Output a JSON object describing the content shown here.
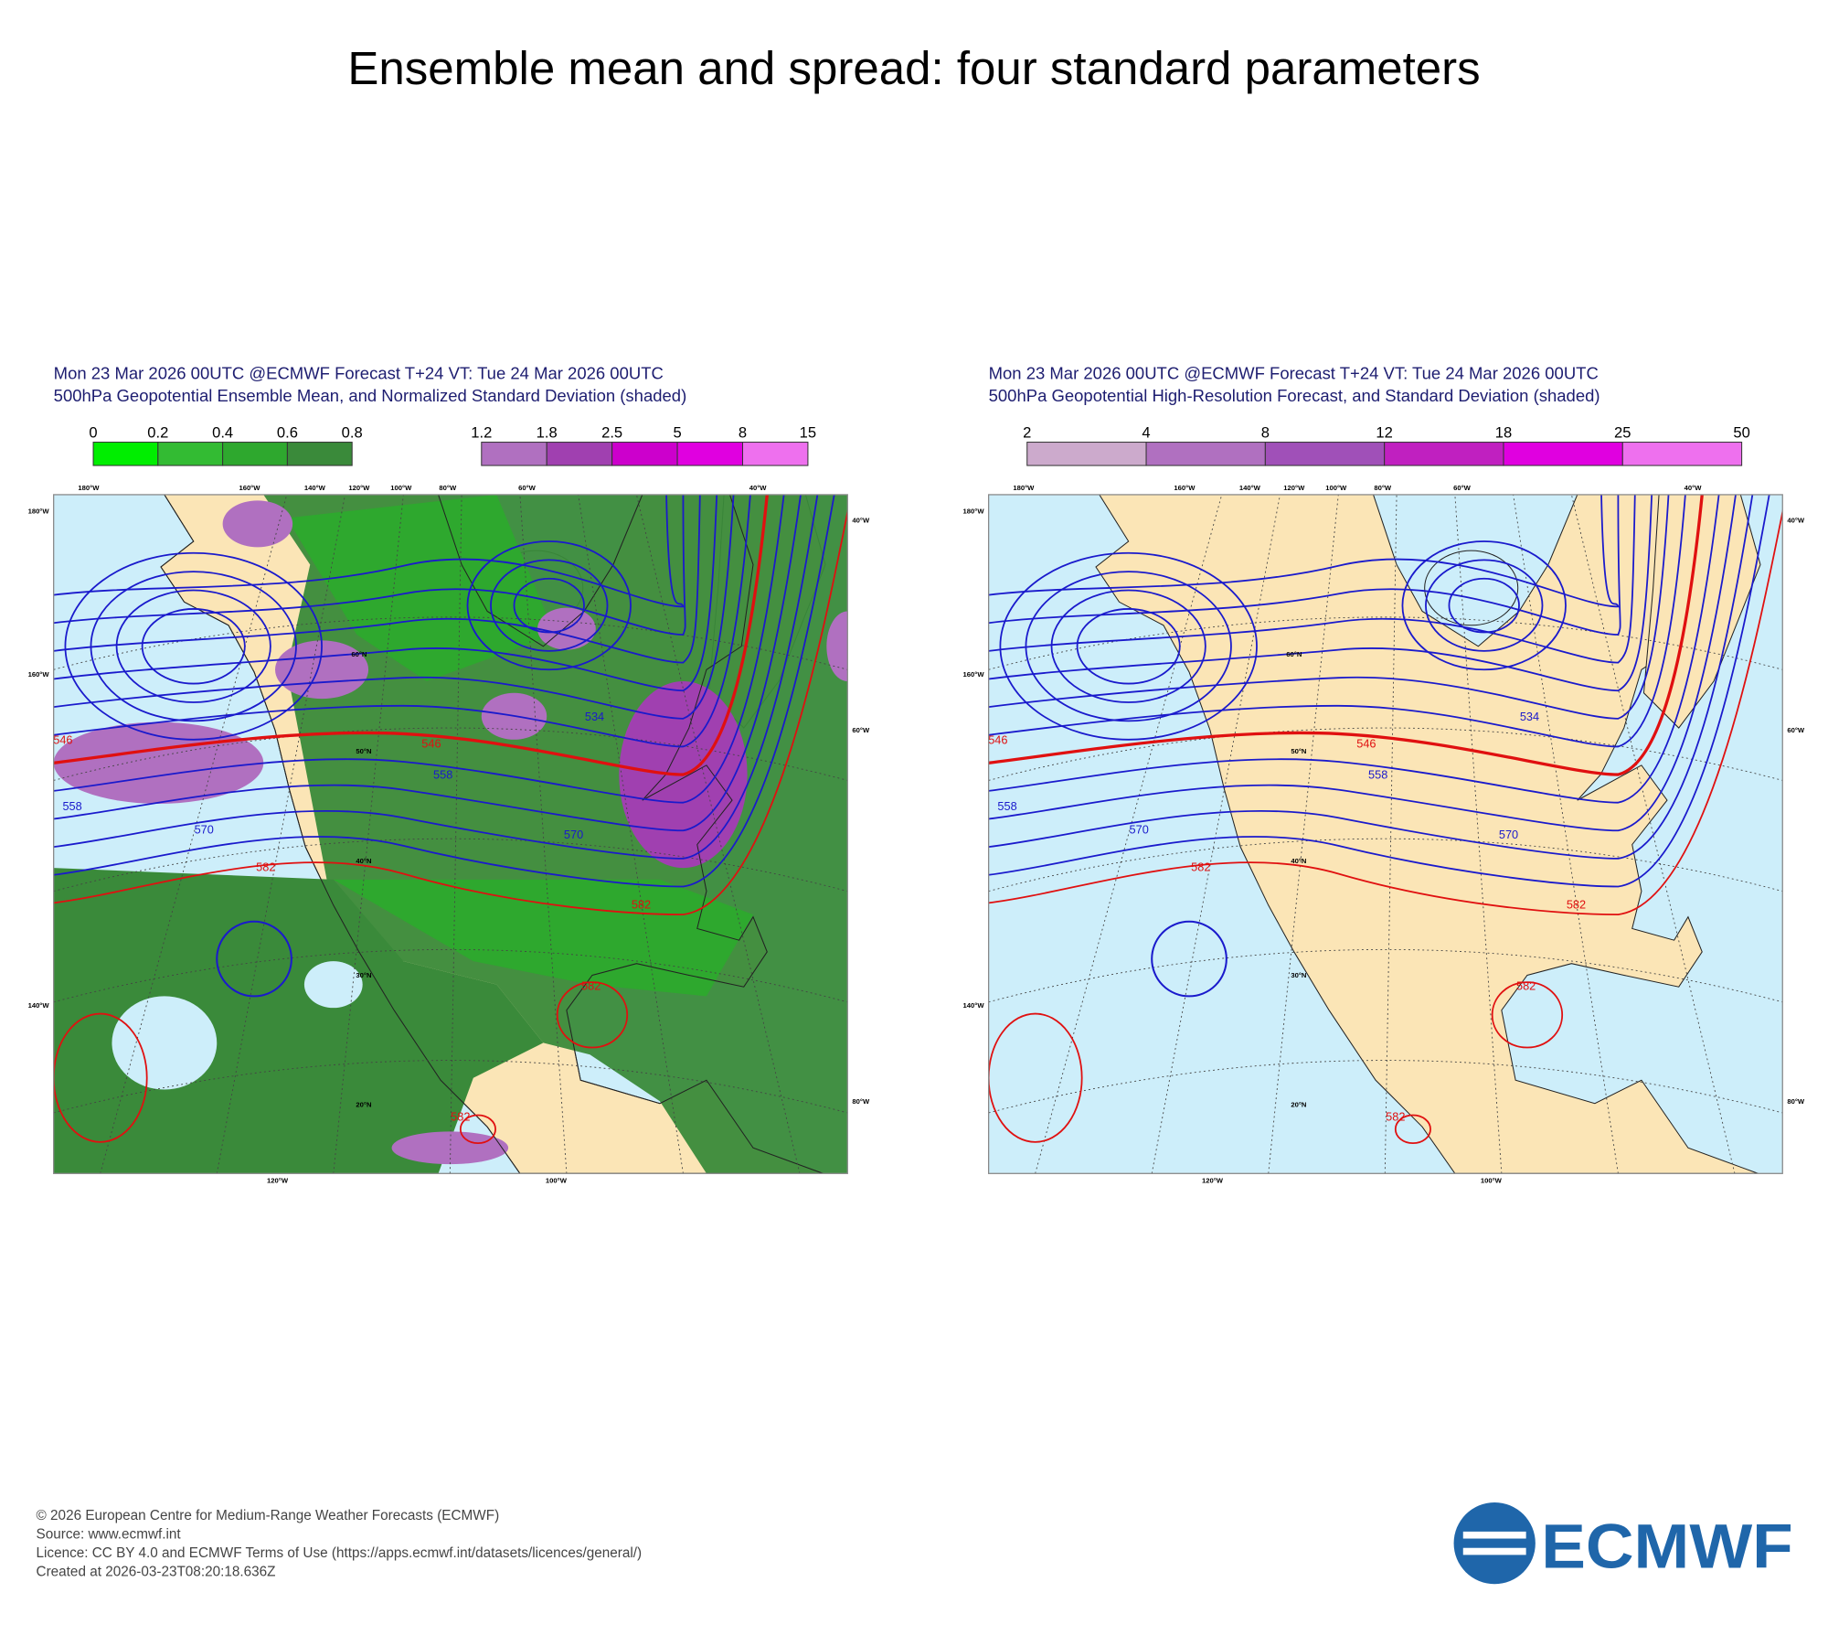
{
  "title": "Ensemble mean and spread: four standard parameters",
  "panels": [
    {
      "header": [
        "Mon 23 Mar 2026 00UTC @ECMWF Forecast T+24 VT: Tue 24 Mar 2026 00UTC",
        "500hPa Geopotential Ensemble Mean, and Normalized Standard Deviation (shaded)"
      ],
      "colorbars": [
        {
          "labels": [
            "0",
            "0.2",
            "0.4",
            "0.6",
            "0.8"
          ],
          "colors": [
            "#00ee00",
            "#33bb33",
            "#2ea82e",
            "#3a8a3a"
          ]
        },
        {
          "labels": [
            "1.2",
            "1.8",
            "2.5",
            "5",
            "8",
            "15"
          ],
          "colors": [
            "#b070c0",
            "#a040b0",
            "#cc00cc",
            "#e000e0",
            "#ee70ee"
          ]
        }
      ],
      "contour_labels": [
        "546",
        "558",
        "570",
        "582",
        "582",
        "582",
        "582",
        "534",
        "546",
        "558",
        "570"
      ]
    },
    {
      "header": [
        "Mon 23 Mar 2026 00UTC @ECMWF Forecast T+24 VT: Tue 24 Mar 2026 00UTC",
        "500hPa Geopotential High-Resolution Forecast, and Standard Deviation (shaded)"
      ],
      "colorbars": [
        {
          "labels": [
            "2",
            "4",
            "8",
            "12",
            "18",
            "25",
            "50"
          ],
          "colors": [
            "#ccaacc",
            "#b070c0",
            "#a050b8",
            "#c020c0",
            "#e000e0",
            "#ee70ee"
          ]
        }
      ],
      "contour_labels": [
        "546",
        "558",
        "570",
        "582",
        "582",
        "582",
        "582",
        "534",
        "546",
        "558",
        "570"
      ]
    }
  ],
  "map_labels": {
    "top": [
      "180°W",
      "160°W",
      "140°W",
      "120°W",
      "100°W",
      "80°W",
      "60°W",
      "40°W"
    ],
    "left": [
      "180°W",
      "160°W",
      "140°W"
    ],
    "right": [
      "40°W",
      "60°W",
      "80°W"
    ],
    "bottom": [
      "120°W",
      "100°W"
    ],
    "latitudes": [
      "60°N",
      "50°N",
      "40°N",
      "30°N",
      "20°N"
    ]
  },
  "footer": [
    "© 2026 European Centre for Medium-Range Weather Forecasts (ECMWF)",
    "Source: www.ecmwf.int",
    "Licence: CC BY 4.0 and ECMWF Terms of Use (https://apps.ecmwf.int/datasets/licences/general/)",
    "Created at 2026-03-23T08:20:18.636Z"
  ],
  "logo": "ECMWF"
}
